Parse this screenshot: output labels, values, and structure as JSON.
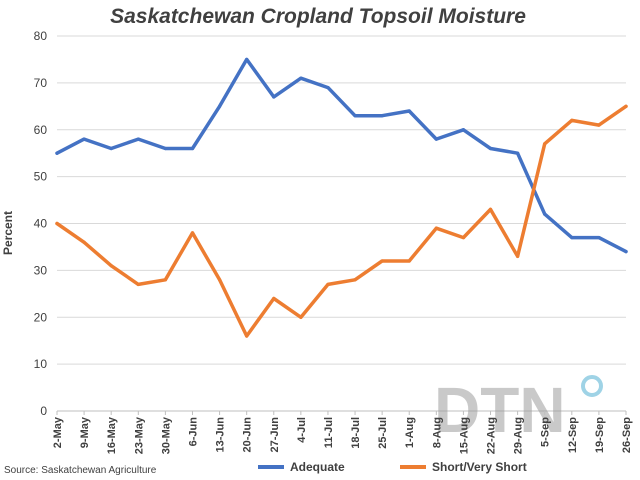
{
  "chart_data": {
    "type": "line",
    "title": "Saskatchewan Cropland Topsoil Moisture",
    "ylabel": "Percent",
    "xlabel": "",
    "ylim": [
      0,
      80
    ],
    "yticks": [
      0,
      10,
      20,
      30,
      40,
      50,
      60,
      70,
      80
    ],
    "grid": true,
    "legend_position": "bottom",
    "categories": [
      "2-May",
      "9-May",
      "16-May",
      "23-May",
      "30-May",
      "6-Jun",
      "13-Jun",
      "20-Jun",
      "27-Jun",
      "4-Jul",
      "11-Jul",
      "18-Jul",
      "25-Jul",
      "1-Aug",
      "8-Aug",
      "15-Aug",
      "22-Aug",
      "29-Aug",
      "5-Sep",
      "12-Sep",
      "19-Sep",
      "26-Sep"
    ],
    "series": [
      {
        "name": "Adequate",
        "color": "#4472c4",
        "values": [
          55,
          58,
          56,
          58,
          56,
          56,
          65,
          75,
          67,
          71,
          69,
          63,
          63,
          64,
          58,
          60,
          56,
          55,
          42,
          37,
          37,
          34
        ]
      },
      {
        "name": "Short/Very Short",
        "color": "#ed7d31",
        "values": [
          40,
          36,
          31,
          27,
          28,
          38,
          28,
          16,
          24,
          20,
          27,
          28,
          32,
          32,
          39,
          37,
          43,
          33,
          57,
          62,
          61,
          65
        ]
      }
    ]
  },
  "source": "Source: Saskatchewan Agriculture",
  "logo": {
    "text": "DTN",
    "accent_color": "#9fd3e6"
  }
}
